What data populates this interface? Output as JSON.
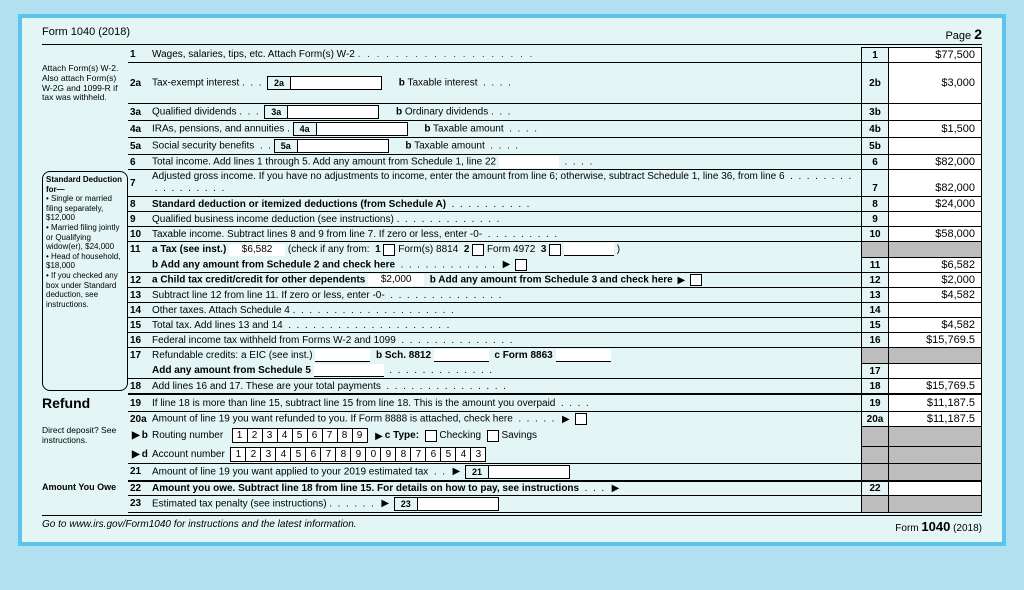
{
  "header": {
    "left": "Form 1040 (2018)",
    "right_label": "Page",
    "right_num": "2"
  },
  "attach_note": "Attach Form(s) W-2. Also attach Form(s) W-2G and 1099-R if tax was withheld.",
  "sidebar": {
    "title": "Standard Deduction for—",
    "items": [
      "Single or married filing separately, $12,000",
      "Married filing jointly or Qualifying widow(er), $24,000",
      "Head of household, $18,000",
      "If you checked any box under Standard deduction, see instructions."
    ]
  },
  "amounts": {
    "l1": "$77,500",
    "l2b": "$3,000",
    "l3b": "",
    "l4b": "$1,500",
    "l5b": "",
    "l6": "$82,000",
    "l7": "$82,000",
    "l8": "$24,000",
    "l9": "",
    "l10": "$58,000",
    "l11": "$6,582",
    "l12": "$2,000",
    "l13": "$4,582",
    "l14": "",
    "l15": "$4,582",
    "l16": "$15,769.5",
    "l17": "",
    "l18": "$15,769.5",
    "l19": "$11,187.5",
    "l20a": "$11,187.5",
    "l22": ""
  },
  "inline": {
    "tax11a": "$6,582",
    "child12a": "$2,000"
  },
  "routing": [
    "1",
    "2",
    "3",
    "4",
    "5",
    "6",
    "7",
    "8",
    "9"
  ],
  "account": [
    "1",
    "2",
    "3",
    "4",
    "5",
    "6",
    "7",
    "8",
    "9",
    "0",
    "9",
    "8",
    "7",
    "6",
    "5",
    "4",
    "3"
  ],
  "section": {
    "refund": "Refund",
    "owe": "Amount  You Owe"
  },
  "dd_note": "Direct deposit? See instructions.",
  "footer": {
    "left": "Go to www.irs.gov/Form1040 for instructions and the latest information.",
    "right_form": "1040",
    "right_suffix": "(2018)"
  },
  "labels": {
    "l1": "Wages, salaries, tips, etc. Attach Form(s) W-2",
    "l2a": "Tax-exempt interest",
    "l2b": "Taxable interest",
    "l3a": "Qualified dividends",
    "l3b": "Ordinary dividends",
    "l4a": "IRAs, pensions, and annuities",
    "l4b": "Taxable amount",
    "l5a": "Social security benefits",
    "l5b": "Taxable amount",
    "l6": "Total income. Add lines 1 through 5. Add any amount from Schedule 1, line 22",
    "l7": "Adjusted gross income. If you have no adjustments to income, enter the amount from line 6; otherwise, subtract Schedule 1, line 36, from line 6",
    "l8": "Standard deduction or itemized deductions (from Schedule A)",
    "l9": "Qualified business income deduction (see instructions)",
    "l10": "Taxable income. Subtract lines 8 and 9 from line 7. If zero or less, enter -0-",
    "l11a_pre": "a Tax (see inst.)",
    "l11a_post": "(check if any from:",
    "l11b": "b Add any amount from Schedule 2 and check here",
    "l12a": "a Child tax credit/credit for other dependents",
    "l12b": "b Add any amount from Schedule 3 and check here",
    "l13": "Subtract line 12 from line 11. If zero or less, enter -0-",
    "l14": "Other taxes. Attach Schedule 4",
    "l15": "Total tax. Add lines 13 and 14",
    "l16": "Federal income tax withheld from Forms W-2 and 1099",
    "l17": "Refundable credits: a EIC (see inst.)",
    "l17b": "b Sch. 8812",
    "l17c": "c Form 8863",
    "l17add": "Add any amount from Schedule 5",
    "l18": "Add lines 16 and 17. These are your total payments",
    "l19": "If line 18 is more than line 15, subtract line 15 from line 18. This is the amount you overpaid",
    "l20a": "Amount of line 19 you want refunded to you. If Form 8888 is attached, check here",
    "l20b": "Routing number",
    "l20c": "c Type:",
    "chkg": "Checking",
    "sav": "Savings",
    "l20d": "Account number",
    "l21": "Amount of line 19 you want applied to your 2019 estimated tax",
    "l22": "Amount you owe. Subtract line 18 from line 15. For details on how to pay, see instructions",
    "l23": "Estimated tax penalty (see instructions)"
  }
}
